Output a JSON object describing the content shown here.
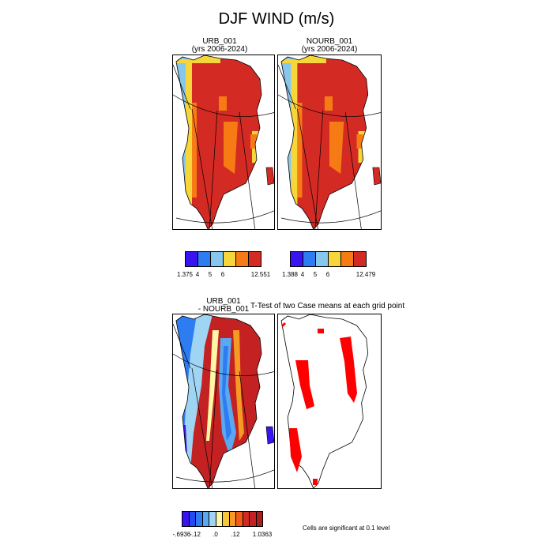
{
  "title": "DJF WIND (m/s)",
  "panels": [
    {
      "id": "urb",
      "title_line1": "URB_001",
      "title_line2": "(yrs 2006-2024)",
      "colorbar": {
        "colors": [
          "#3a14f0",
          "#2e7cf2",
          "#86c7ee",
          "#f6d63a",
          "#f77b14",
          "#d42a24"
        ],
        "labels": [
          "1.375",
          "4",
          "5",
          "6",
          "",
          "12.551"
        ]
      }
    },
    {
      "id": "nourb",
      "title_line1": "NOURB_001",
      "title_line2": "(yrs 2006-2024)",
      "colorbar": {
        "colors": [
          "#3a14f0",
          "#2e7cf2",
          "#86c7ee",
          "#f6d63a",
          "#f77b14",
          "#d42a24"
        ],
        "labels": [
          "1.388",
          "4",
          "5",
          "6",
          "",
          "12.479"
        ]
      }
    },
    {
      "id": "diff",
      "title_line1": "URB_001",
      "title_line2": "- NOURB_001",
      "colorbar": {
        "colors": [
          "#3a14f0",
          "#2448f2",
          "#2e7cf2",
          "#5aa8f0",
          "#9fd4f2",
          "#fff7a8",
          "#f6c83a",
          "#f79a24",
          "#f25c18",
          "#d42a24",
          "#c42222",
          "#b01c1c"
        ],
        "labels": [
          "-.6936",
          "",
          "-.12",
          "",
          "",
          ".0",
          "",
          "",
          ".12",
          "",
          "",
          "1.0363"
        ]
      }
    },
    {
      "id": "ttest",
      "title": "T-Test of two Case means at each grid point",
      "note": "Cells are significant at 0.1 level",
      "significance_color": "#ff0000"
    }
  ],
  "chart_data": [
    {
      "type": "heatmap",
      "title": "URB_001 (yrs 2006-2024)",
      "variable": "DJF WIND",
      "units": "m/s",
      "colorbar_min": 1.375,
      "colorbar_max": 12.551,
      "colorbar_levels": [
        1.375,
        4,
        5,
        6,
        12.551
      ],
      "region": "Greenland"
    },
    {
      "type": "heatmap",
      "title": "NOURB_001 (yrs 2006-2024)",
      "variable": "DJF WIND",
      "units": "m/s",
      "colorbar_min": 1.388,
      "colorbar_max": 12.479,
      "colorbar_levels": [
        1.388,
        4,
        5,
        6,
        12.479
      ],
      "region": "Greenland"
    },
    {
      "type": "heatmap",
      "title": "URB_001 - NOURB_001",
      "variable": "DJF WIND difference",
      "units": "m/s",
      "colorbar_min": -0.6936,
      "colorbar_max": 1.0363,
      "colorbar_levels": [
        -0.6936,
        -0.12,
        0.0,
        0.12,
        1.0363
      ],
      "region": "Greenland"
    },
    {
      "type": "heatmap",
      "title": "T-Test of two Case means at each grid point",
      "note": "Cells are significant at 0.1 level",
      "region": "Greenland"
    }
  ]
}
